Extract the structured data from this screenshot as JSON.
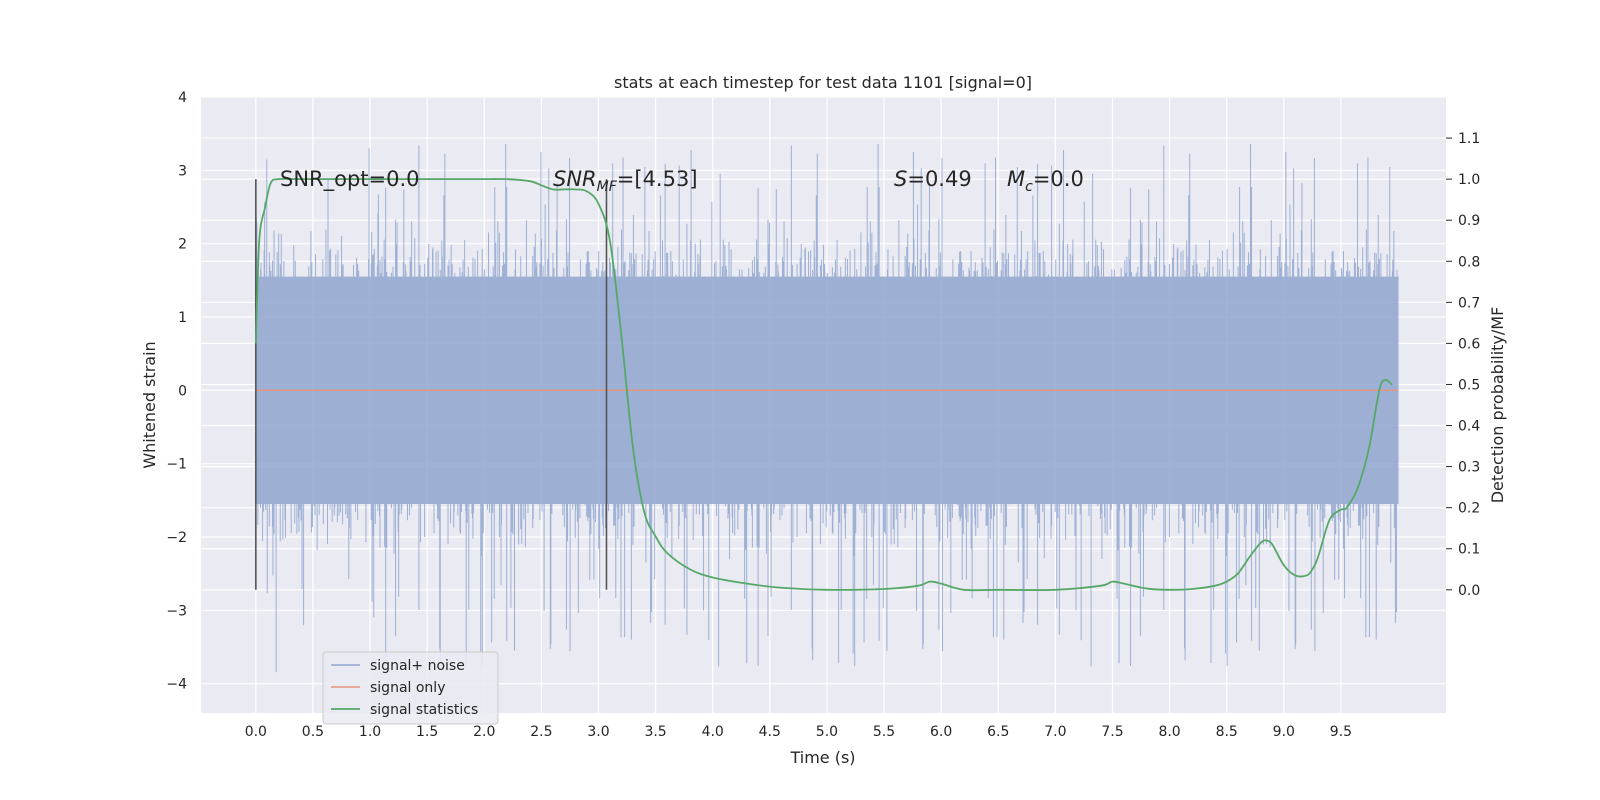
{
  "chart_data": {
    "type": "line",
    "title": "stats at each timestep for test data 1101 [signal=0]",
    "xlabel": "Time (s)",
    "ylabel": "Whitened strain",
    "ylabel_right": "Detection probability/MF",
    "xlim": [
      -0.48,
      10.42
    ],
    "ylim": [
      -4.4,
      4.0
    ],
    "ylim_right": [
      -0.3,
      1.2
    ],
    "x_ticks": [
      "0.0",
      "0.5",
      "1.0",
      "1.5",
      "2.0",
      "2.5",
      "3.0",
      "3.5",
      "4.0",
      "4.5",
      "5.0",
      "5.5",
      "6.0",
      "6.5",
      "7.0",
      "7.5",
      "8.0",
      "8.5",
      "9.0",
      "9.5"
    ],
    "x_tick_values": [
      0,
      0.5,
      1,
      1.5,
      2,
      2.5,
      3,
      3.5,
      4,
      4.5,
      5,
      5.5,
      6,
      6.5,
      7,
      7.5,
      8,
      8.5,
      9,
      9.5
    ],
    "y_ticks": [
      "−4",
      "−3",
      "−2",
      "−1",
      "0",
      "1",
      "2",
      "3",
      "4"
    ],
    "y_tick_values": [
      -4,
      -3,
      -2,
      -1,
      0,
      1,
      2,
      3,
      4
    ],
    "y_ticks_right": [
      "0.0",
      "0.1",
      "0.2",
      "0.3",
      "0.4",
      "0.5",
      "0.6",
      "0.7",
      "0.8",
      "0.9",
      "1.0",
      "1.1"
    ],
    "y_tick_values_right": [
      0,
      0.1,
      0.2,
      0.3,
      0.4,
      0.5,
      0.6,
      0.7,
      0.8,
      0.9,
      1.0,
      1.1
    ],
    "grid": true,
    "legend_position": "lower-left",
    "series": [
      {
        "name": "signal+ noise",
        "axis": "left",
        "color": "#8fa6cf",
        "description": "dense whitened noise, t = 0 to 10 s",
        "t_range": [
          0,
          10
        ],
        "typical_range": [
          -1.6,
          1.6
        ],
        "extreme_range": [
          -4.1,
          3.6
        ]
      },
      {
        "name": "signal only",
        "axis": "left",
        "color": "#e8967a",
        "x": [
          0,
          10
        ],
        "y": [
          0,
          0
        ]
      },
      {
        "name": "signal statistics",
        "axis": "right",
        "color": "#55a868",
        "x": [
          0.0,
          0.03,
          0.08,
          0.13,
          0.2,
          0.4,
          0.8,
          1.2,
          1.6,
          2.0,
          2.2,
          2.4,
          2.5,
          2.6,
          2.7,
          2.8,
          2.9,
          3.0,
          3.1,
          3.2,
          3.3,
          3.4,
          3.5,
          3.6,
          3.8,
          4.0,
          4.3,
          4.6,
          5.0,
          5.5,
          5.8,
          5.9,
          6.0,
          6.2,
          6.5,
          7.0,
          7.4,
          7.5,
          7.6,
          7.8,
          8.0,
          8.2,
          8.4,
          8.5,
          8.6,
          8.7,
          8.8,
          8.85,
          8.9,
          9.0,
          9.1,
          9.2,
          9.25,
          9.3,
          9.4,
          9.5,
          9.55,
          9.65,
          9.75,
          9.85,
          9.95
        ],
        "y": [
          0.6,
          0.85,
          0.93,
          0.99,
          1.0,
          1.0,
          1.0,
          1.0,
          1.0,
          1.0,
          1.0,
          0.995,
          0.985,
          0.975,
          0.975,
          0.975,
          0.97,
          0.94,
          0.85,
          0.62,
          0.35,
          0.19,
          0.13,
          0.09,
          0.05,
          0.03,
          0.015,
          0.005,
          0.0,
          0.002,
          0.01,
          0.02,
          0.015,
          0.0,
          0.0,
          0.0,
          0.01,
          0.02,
          0.015,
          0.003,
          0.0,
          0.002,
          0.01,
          0.02,
          0.04,
          0.08,
          0.115,
          0.12,
          0.11,
          0.06,
          0.035,
          0.035,
          0.05,
          0.08,
          0.17,
          0.195,
          0.2,
          0.25,
          0.35,
          0.5,
          0.5
        ]
      }
    ],
    "vertical_markers": [
      0.0,
      3.07
    ],
    "annotations": {
      "snr_opt": "SNR_opt=0.0",
      "snr_mf_base": "SNR",
      "snr_mf_sub": "MF",
      "snr_mf_value": "=[4.53]",
      "s_sym": "S",
      "s_value": "=0.49",
      "mc_sym": "M",
      "mc_sub": "c",
      "mc_value": "=0.0"
    },
    "colors": {
      "plot_background": "#eaeaf2",
      "grid": "#ffffff",
      "marker_line": "#555555"
    }
  }
}
